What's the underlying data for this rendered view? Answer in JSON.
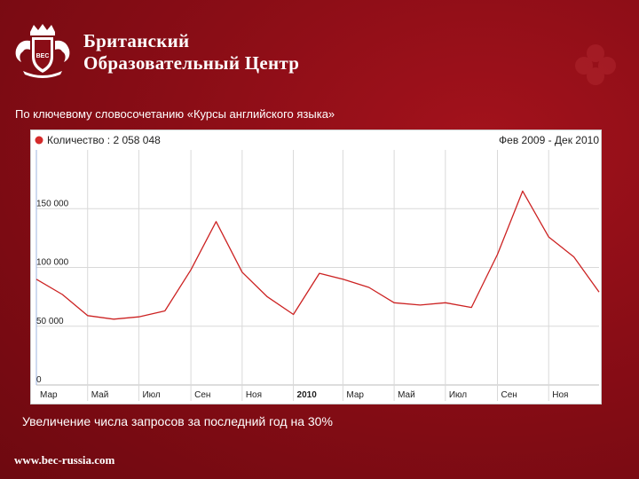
{
  "header": {
    "brand_line1": "Британский",
    "brand_line2": "Образовательный Центр",
    "logo_text": "BEC"
  },
  "subtitle": "По ключевому словосочетанию «Курсы английского языка»",
  "footer_note": "Увеличение числа запросов за последний год на 30%",
  "website": "www.bec-russia.com",
  "colors": {
    "background": "#8a0d16",
    "line": "#cc2222",
    "legend_dot": "#d42a2a"
  },
  "chart_data": {
    "type": "line",
    "legend": "Количество : 2 058 048",
    "date_range": "Фев 2009 - Дек 2010",
    "ylim": [
      0,
      200000
    ],
    "y_ticks": [
      {
        "label": "150 000",
        "value": 150000
      },
      {
        "label": "100 000",
        "value": 100000
      },
      {
        "label": "50 000",
        "value": 50000
      },
      {
        "label": "0",
        "value": 0
      }
    ],
    "x_range": [
      "2009-03-01",
      "2010-12-31"
    ],
    "x_ticks": [
      {
        "label": "Мар",
        "date": "2009-03-01",
        "bold": false
      },
      {
        "label": "Май",
        "date": "2009-05-01",
        "bold": false
      },
      {
        "label": "Июл",
        "date": "2009-07-01",
        "bold": false
      },
      {
        "label": "Сен",
        "date": "2009-09-01",
        "bold": false
      },
      {
        "label": "Ноя",
        "date": "2009-11-01",
        "bold": false
      },
      {
        "label": "2010",
        "date": "2010-01-01",
        "bold": true
      },
      {
        "label": "Мар",
        "date": "2010-03-01",
        "bold": false
      },
      {
        "label": "Май",
        "date": "2010-05-01",
        "bold": false
      },
      {
        "label": "Июл",
        "date": "2010-07-01",
        "bold": false
      },
      {
        "label": "Сен",
        "date": "2010-09-01",
        "bold": false
      },
      {
        "label": "Ноя",
        "date": "2010-11-01",
        "bold": false
      }
    ],
    "series": [
      {
        "values": [
          {
            "x": "2009-03-01",
            "y": 90000
          },
          {
            "x": "2009-04-01",
            "y": 77000
          },
          {
            "x": "2009-05-01",
            "y": 59000
          },
          {
            "x": "2009-06-01",
            "y": 56000
          },
          {
            "x": "2009-07-01",
            "y": 58000
          },
          {
            "x": "2009-08-01",
            "y": 63000
          },
          {
            "x": "2009-09-01",
            "y": 98000
          },
          {
            "x": "2009-10-01",
            "y": 139000
          },
          {
            "x": "2009-11-01",
            "y": 96000
          },
          {
            "x": "2009-12-01",
            "y": 75000
          },
          {
            "x": "2010-01-01",
            "y": 60000
          },
          {
            "x": "2010-02-01",
            "y": 95000
          },
          {
            "x": "2010-03-01",
            "y": 90000
          },
          {
            "x": "2010-04-01",
            "y": 83000
          },
          {
            "x": "2010-05-01",
            "y": 70000
          },
          {
            "x": "2010-06-01",
            "y": 68000
          },
          {
            "x": "2010-07-01",
            "y": 70000
          },
          {
            "x": "2010-08-01",
            "y": 66000
          },
          {
            "x": "2010-09-01",
            "y": 111000
          },
          {
            "x": "2010-10-01",
            "y": 165000
          },
          {
            "x": "2010-11-01",
            "y": 126000
          },
          {
            "x": "2010-12-01",
            "y": 109000
          },
          {
            "x": "2010-12-31",
            "y": 79000
          }
        ]
      }
    ],
    "grid": true
  }
}
